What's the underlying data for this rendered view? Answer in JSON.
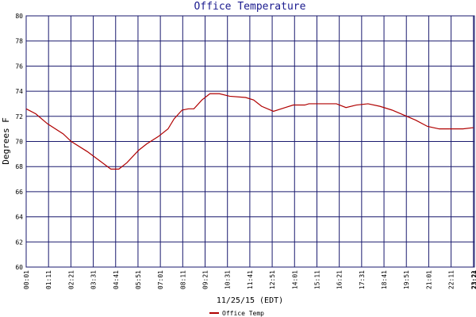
{
  "chart_data": {
    "type": "line",
    "title": "Office Temperature",
    "x_label": "11/25/15 (EDT)",
    "y_label": "Degrees F",
    "x": [
      1,
      31,
      68,
      117,
      142,
      192,
      229,
      266,
      291,
      316,
      353,
      378,
      415,
      445,
      464,
      489,
      509,
      526,
      551,
      576,
      606,
      638,
      688,
      713,
      738,
      775,
      812,
      837,
      873,
      886,
      972,
      1002,
      1034,
      1071,
      1108,
      1146,
      1183,
      1220,
      1257,
      1294,
      1368,
      1401
    ],
    "series": [
      {
        "name": "Office Temp",
        "color": "#b00000",
        "values": [
          72.6,
          72.2,
          71.4,
          70.6,
          70.0,
          69.2,
          68.5,
          67.8,
          67.8,
          68.3,
          69.3,
          69.8,
          70.4,
          71.0,
          71.8,
          72.5,
          72.6,
          72.6,
          73.3,
          73.8,
          73.8,
          73.6,
          73.5,
          73.3,
          72.8,
          72.4,
          72.7,
          72.9,
          72.9,
          73.0,
          73.0,
          72.7,
          72.9,
          73.0,
          72.8,
          72.5,
          72.1,
          71.7,
          71.2,
          71.0,
          71.0,
          71.1
        ]
      }
    ],
    "xlim": [
      1,
      1404
    ],
    "xticks": [
      {
        "value": 1,
        "label": "00:01"
      },
      {
        "value": 71,
        "label": "01:11"
      },
      {
        "value": 141,
        "label": "02:21"
      },
      {
        "value": 211,
        "label": "03:31"
      },
      {
        "value": 281,
        "label": "04:41"
      },
      {
        "value": 351,
        "label": "05:51"
      },
      {
        "value": 421,
        "label": "07:01"
      },
      {
        "value": 491,
        "label": "08:11"
      },
      {
        "value": 561,
        "label": "09:21"
      },
      {
        "value": 631,
        "label": "10:31"
      },
      {
        "value": 701,
        "label": "11:41"
      },
      {
        "value": 771,
        "label": "12:51"
      },
      {
        "value": 841,
        "label": "14:01"
      },
      {
        "value": 911,
        "label": "15:11"
      },
      {
        "value": 981,
        "label": "16:21"
      },
      {
        "value": 1051,
        "label": "17:31"
      },
      {
        "value": 1121,
        "label": "18:41"
      },
      {
        "value": 1191,
        "label": "19:51"
      },
      {
        "value": 1261,
        "label": "21:01"
      },
      {
        "value": 1331,
        "label": "22:11"
      },
      {
        "value": 1401,
        "label": "23:21"
      },
      {
        "value": 1404,
        "label": "23:24"
      }
    ],
    "ylim": [
      60,
      80
    ],
    "yticks": [
      60,
      62,
      64,
      66,
      68,
      70,
      72,
      74,
      76,
      78,
      80
    ],
    "grid": true
  }
}
